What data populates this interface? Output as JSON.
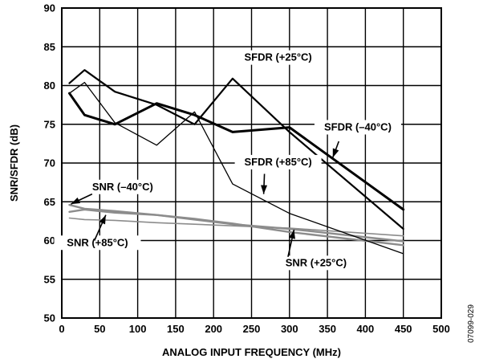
{
  "chart_data": {
    "type": "line",
    "xlabel": "ANALOG INPUT FREQUENCY (MHz)",
    "ylabel": "SNR/SFDR (dB)",
    "xlim": [
      0,
      500
    ],
    "ylim": [
      50,
      90
    ],
    "xticks": [
      "0",
      "50",
      "100",
      "150",
      "200",
      "250",
      "300",
      "350",
      "400",
      "450",
      "500"
    ],
    "yticks": [
      "50",
      "55",
      "60",
      "65",
      "70",
      "75",
      "80",
      "85",
      "90"
    ],
    "grid": true,
    "figure_id": "07099-029",
    "series": [
      {
        "name": "SFDR (+25°C)",
        "color": "#000000",
        "width": 2.2,
        "x": [
          10,
          30,
          70,
          125,
          175,
          225,
          300,
          450
        ],
        "y": [
          80.3,
          82.0,
          79.2,
          77.5,
          75.0,
          80.9,
          74.0,
          61.5
        ]
      },
      {
        "name": "SFDR (–40°C)",
        "color": "#000000",
        "width": 3.0,
        "x": [
          10,
          30,
          70,
          125,
          175,
          225,
          300,
          450
        ],
        "y": [
          79.0,
          76.2,
          75.0,
          77.7,
          76.2,
          74.0,
          74.6,
          64.0
        ]
      },
      {
        "name": "SFDR (+85°C)",
        "color": "#000000",
        "width": 1.3,
        "x": [
          10,
          30,
          70,
          125,
          175,
          225,
          300,
          450
        ],
        "y": [
          79.0,
          80.4,
          75.2,
          72.3,
          76.6,
          67.3,
          63.5,
          58.3
        ]
      },
      {
        "name": "SNR (–40°C)",
        "color": "#8c8c8c",
        "width": 2.4,
        "x": [
          10,
          30,
          70,
          125,
          175,
          225,
          300,
          450
        ],
        "y": [
          64.6,
          64.1,
          63.8,
          63.3,
          62.7,
          62.1,
          61.5,
          59.9
        ]
      },
      {
        "name": "SNR (+85°C)",
        "color": "#8c8c8c",
        "width": 2.4,
        "x": [
          10,
          30,
          70,
          125,
          175,
          225,
          300,
          450
        ],
        "y": [
          63.7,
          64.0,
          63.6,
          63.3,
          62.8,
          62.2,
          61.1,
          59.4
        ]
      },
      {
        "name": "SNR (+25°C)",
        "color": "#8c8c8c",
        "width": 1.6,
        "x": [
          10,
          30,
          70,
          125,
          175,
          225,
          300,
          450
        ],
        "y": [
          62.9,
          62.7,
          62.6,
          62.3,
          62.1,
          61.9,
          61.6,
          60.6
        ]
      }
    ],
    "annotations": [
      {
        "text": "SFDR (+25°C)",
        "label_x": 285,
        "label_y": 83.2,
        "anchor": "middle",
        "arrow": null
      },
      {
        "text": "SFDR (–40°C)",
        "label_x": 390,
        "label_y": 74.2,
        "anchor": "middle",
        "arrow": [
          [
            365,
            72.8
          ],
          [
            357,
            70.7
          ]
        ]
      },
      {
        "text": "SFDR (+85°C)",
        "label_x": 285,
        "label_y": 69.7,
        "anchor": "middle",
        "arrow": [
          [
            267,
            68.6
          ],
          [
            266,
            66.0
          ]
        ]
      },
      {
        "text": "SNR (–40°C)",
        "label_x": 40,
        "label_y": 66.5,
        "anchor": "start",
        "arrow": [
          [
            40,
            66.0
          ],
          [
            12,
            64.7
          ]
        ]
      },
      {
        "text": "SNR (+85°C)",
        "label_x": 47,
        "label_y": 59.3,
        "anchor": "middle",
        "arrow": [
          [
            43,
            60.0
          ],
          [
            58,
            63.3
          ]
        ]
      },
      {
        "text": "SNR (+25°C)",
        "label_x": 335,
        "label_y": 56.7,
        "anchor": "middle",
        "arrow": [
          [
            298,
            57.9
          ],
          [
            306,
            61.4
          ]
        ]
      }
    ]
  }
}
